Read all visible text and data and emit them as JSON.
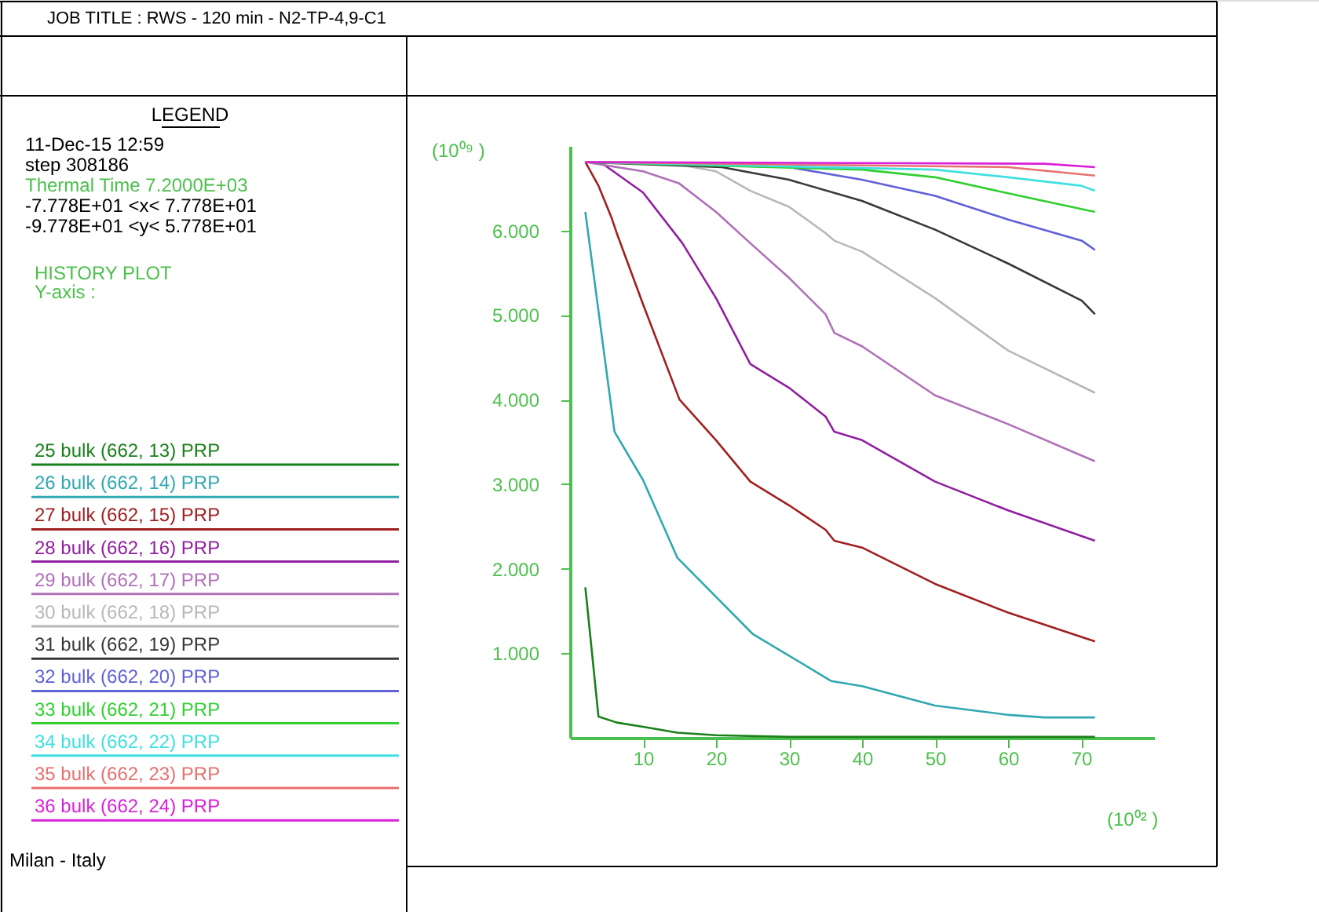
{
  "chart_data": {
    "type": "line",
    "title": "JOB TITLE : RWS - 120 min - N2-TP-4,9-C1",
    "legend_title": "LEGEND",
    "legend": "left",
    "annotations": [
      "11-Dec-15  12:59",
      "step   308186",
      "Thermal Time   7.2000E+03",
      "-7.778E+01 <x<  7.778E+01",
      "-9.778E+01 <y<  5.778E+01",
      "HISTORY PLOT",
      "Y-axis :",
      "Milan - Italy"
    ],
    "ylabel": "(10⁰⁹ )",
    "xlabel": "(10⁰² )",
    "xlim": [
      0,
      80
    ],
    "xticks": [
      10,
      20,
      30,
      40,
      50,
      60,
      70
    ],
    "ylim": [
      0,
      7.0
    ],
    "yticks": [
      {
        "value": 1,
        "label": "1.000"
      },
      {
        "value": 2,
        "label": "2.000"
      },
      {
        "value": 3,
        "label": "3.000"
      },
      {
        "value": 4,
        "label": "4.000"
      },
      {
        "value": 5,
        "label": "5.000"
      },
      {
        "value": 6,
        "label": "6.000"
      }
    ],
    "grid": false,
    "marker": "none",
    "line_style": "solid",
    "series": [
      {
        "name": "25 bulk (662, 13) PRP",
        "color": "#1a801a",
        "x": [
          2.1,
          3.9,
          6.4,
          10,
          14.7,
          20,
          30,
          50,
          71.9
        ],
        "values": [
          1.78,
          0.25,
          0.18,
          0.13,
          0.06,
          0.03,
          0.01,
          0.01,
          0.01
        ]
      },
      {
        "name": "26 bulk (662, 14) PRP",
        "color": "#30a8b0",
        "x": [
          2.1,
          6.1,
          10,
          14.7,
          25,
          35.8,
          40,
          50,
          60.1,
          65,
          71.9
        ],
        "values": [
          6.22,
          3.62,
          3.05,
          2.13,
          1.23,
          0.67,
          0.61,
          0.38,
          0.27,
          0.24,
          0.24
        ]
      },
      {
        "name": "27 bulk (662, 15) PRP",
        "color": "#a02020",
        "x": [
          2.1,
          3.9,
          5.7,
          6.4,
          10,
          15,
          20,
          24.7,
          30,
          35,
          36.2,
          40,
          50,
          60,
          71.9
        ],
        "values": [
          6.81,
          6.53,
          6.15,
          5.97,
          5.13,
          4.0,
          3.52,
          3.03,
          2.75,
          2.46,
          2.33,
          2.25,
          1.82,
          1.48,
          1.14
        ]
      },
      {
        "name": "28 bulk (662, 16) PRP",
        "color": "#9020a0",
        "x": [
          2.1,
          4.3,
          10,
          15.4,
          20,
          24.7,
          30,
          35,
          36.2,
          40,
          50,
          60,
          71.9
        ],
        "values": [
          6.81,
          6.8,
          6.45,
          5.85,
          5.2,
          4.42,
          4.14,
          3.8,
          3.62,
          3.52,
          3.03,
          2.69,
          2.33
        ]
      },
      {
        "name": "29 bulk (662, 17) PRP",
        "color": "#b070b8",
        "x": [
          2.1,
          10,
          14.9,
          20,
          24.7,
          30,
          35,
          36.2,
          40,
          50,
          60,
          71.9
        ],
        "values": [
          6.81,
          6.7,
          6.56,
          6.22,
          5.85,
          5.44,
          5.01,
          4.79,
          4.63,
          4.05,
          3.71,
          3.27
        ]
      },
      {
        "name": "30 bulk (662, 18) PRP",
        "color": "#b8b8b8",
        "x": [
          2.1,
          15,
          20,
          24.7,
          30,
          35,
          36.2,
          40,
          50,
          60,
          71.9
        ],
        "values": [
          6.81,
          6.78,
          6.7,
          6.47,
          6.28,
          5.97,
          5.88,
          5.75,
          5.2,
          4.58,
          4.08
        ]
      },
      {
        "name": "31 bulk (662, 19) PRP",
        "color": "#383838",
        "x": [
          2.1,
          20.8,
          30,
          40,
          50,
          60,
          70.1,
          71.9
        ],
        "values": [
          6.81,
          6.75,
          6.6,
          6.35,
          6.01,
          5.61,
          5.17,
          5.01
        ]
      },
      {
        "name": "32 bulk (662, 20) PRP",
        "color": "#6060d8",
        "x": [
          2.1,
          30,
          40,
          50,
          60,
          70.1,
          71.9
        ],
        "values": [
          6.81,
          6.75,
          6.6,
          6.41,
          6.13,
          5.88,
          5.77
        ]
      },
      {
        "name": "33 bulk (662, 21) PRP",
        "color": "#30d030",
        "x": [
          2.1,
          40,
          50,
          60,
          71.9
        ],
        "values": [
          6.81,
          6.72,
          6.63,
          6.44,
          6.22
        ]
      },
      {
        "name": "34 bulk (662, 22) PRP",
        "color": "#40e0e0",
        "x": [
          2.1,
          50,
          60,
          70,
          71.9
        ],
        "values": [
          6.81,
          6.72,
          6.63,
          6.53,
          6.47
        ]
      },
      {
        "name": "35 bulk (662, 23) PRP",
        "color": "#e87070",
        "x": [
          2.1,
          60,
          71.9
        ],
        "values": [
          6.81,
          6.75,
          6.65
        ]
      },
      {
        "name": "36 bulk (662, 24) PRP",
        "color": "#d820d8",
        "x": [
          2.1,
          65,
          71.9
        ],
        "values": [
          6.81,
          6.79,
          6.75
        ]
      }
    ]
  }
}
